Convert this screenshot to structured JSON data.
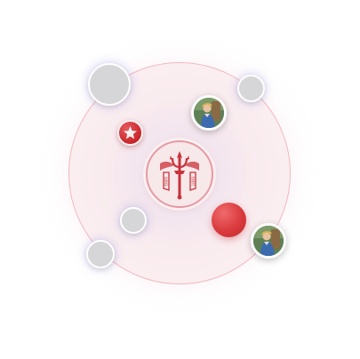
{
  "orbit": {
    "accent_color": "#d93a3d",
    "ring_color": "#f2b8bf"
  },
  "center": {
    "emblem_icon": "trident-emblem-icon",
    "emblem_text_left": "1893",
    "emblem_text_right": "1893"
  },
  "nodes": [
    {
      "kind": "grey-dot",
      "icon": "none"
    },
    {
      "kind": "grey-dot",
      "icon": "none"
    },
    {
      "kind": "grey-dot",
      "icon": "none"
    },
    {
      "kind": "grey-dot",
      "icon": "none"
    },
    {
      "kind": "star-badge",
      "icon": "star-icon"
    },
    {
      "kind": "red-dot",
      "icon": "none"
    },
    {
      "kind": "avatar",
      "icon": "person-photo-icon"
    },
    {
      "kind": "avatar",
      "icon": "person-photo-icon"
    }
  ]
}
